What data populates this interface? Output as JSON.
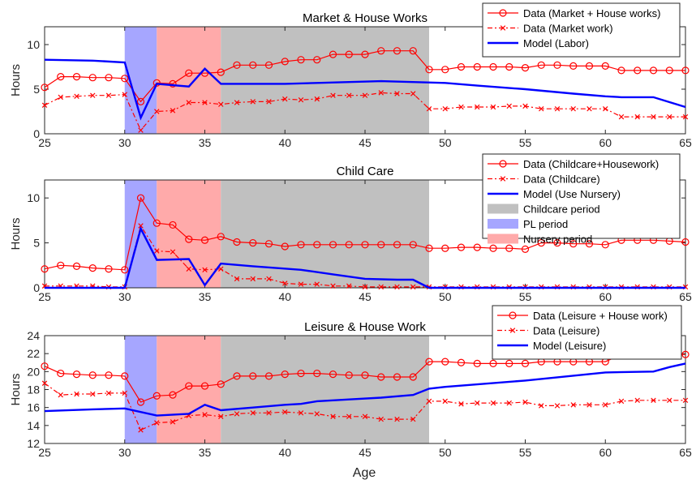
{
  "figure": {
    "xlabel": "Age"
  },
  "colors": {
    "data": "#ff0000",
    "model": "#0000ff",
    "childcare_period": "#c0c0c0",
    "pl_period": "#a6a6ff",
    "nursery_period": "#ffaaaa"
  },
  "chart_data": [
    {
      "type": "line",
      "title": "Market & House Works",
      "xlabel": "",
      "ylabel": "Hours",
      "xlim": [
        25,
        65
      ],
      "ylim": [
        0,
        12
      ],
      "xticks": [
        "25",
        "30",
        "35",
        "40",
        "45",
        "50",
        "55",
        "60",
        "65"
      ],
      "yticks": [
        "0",
        "5",
        "10"
      ],
      "legend_position": "top-right",
      "shaded_regions": [
        {
          "name": "PL period",
          "x": [
            30,
            32
          ]
        },
        {
          "name": "Nursery period",
          "x": [
            32,
            36
          ]
        },
        {
          "name": "Childcare period",
          "x": [
            36,
            49
          ]
        }
      ],
      "series": [
        {
          "name": "Data (Market + House works)",
          "style": "solid-circle",
          "x": [
            25,
            26,
            27,
            28,
            29,
            30,
            31,
            32,
            33,
            34,
            35,
            36,
            37,
            38,
            39,
            40,
            41,
            42,
            43,
            44,
            45,
            46,
            47,
            48,
            49,
            50,
            51,
            52,
            53,
            54,
            55,
            56,
            57,
            58,
            59,
            60,
            61,
            62,
            63,
            64,
            65
          ],
          "y": [
            5.2,
            6.4,
            6.4,
            6.3,
            6.3,
            6.2,
            3.6,
            5.7,
            5.6,
            6.8,
            6.8,
            6.9,
            7.7,
            7.7,
            7.7,
            8.1,
            8.3,
            8.3,
            8.9,
            8.9,
            8.9,
            9.3,
            9.3,
            9.3,
            7.2,
            7.2,
            7.5,
            7.5,
            7.5,
            7.5,
            7.4,
            7.7,
            7.7,
            7.6,
            7.6,
            7.6,
            7.1,
            7.1,
            7.1,
            7.1,
            7.1
          ]
        },
        {
          "name": "Data (Market work)",
          "style": "dashdot-x",
          "x": [
            25,
            26,
            27,
            28,
            29,
            30,
            31,
            32,
            33,
            34,
            35,
            36,
            37,
            38,
            39,
            40,
            41,
            42,
            43,
            44,
            45,
            46,
            47,
            48,
            49,
            50,
            51,
            52,
            53,
            54,
            55,
            56,
            57,
            58,
            59,
            60,
            61,
            62,
            63,
            64,
            65
          ],
          "y": [
            3.2,
            4.1,
            4.2,
            4.3,
            4.3,
            4.4,
            0.4,
            2.5,
            2.6,
            3.5,
            3.5,
            3.3,
            3.5,
            3.6,
            3.6,
            3.9,
            3.8,
            3.9,
            4.3,
            4.3,
            4.3,
            4.6,
            4.5,
            4.5,
            2.8,
            2.8,
            3.0,
            3.0,
            3.0,
            3.1,
            3.1,
            2.8,
            2.8,
            2.8,
            2.8,
            2.8,
            1.9,
            1.9,
            1.9,
            1.9,
            1.9
          ]
        },
        {
          "name": "Model (Labor)",
          "style": "solid",
          "x": [
            25,
            28,
            30,
            31,
            32,
            34,
            35,
            36,
            38,
            40,
            42,
            44,
            46,
            48,
            50,
            52,
            55,
            58,
            60,
            61,
            63,
            65
          ],
          "y": [
            8.3,
            8.2,
            8.0,
            1.8,
            5.6,
            5.3,
            7.3,
            5.6,
            5.6,
            5.6,
            5.7,
            5.8,
            5.9,
            5.8,
            5.7,
            5.4,
            5.0,
            4.5,
            4.2,
            4.1,
            4.1,
            3.0
          ]
        }
      ]
    },
    {
      "type": "line",
      "title": "Child Care",
      "xlabel": "",
      "ylabel": "Hours",
      "xlim": [
        25,
        65
      ],
      "ylim": [
        0,
        12
      ],
      "xticks": [
        "25",
        "30",
        "35",
        "40",
        "45",
        "50",
        "55",
        "60",
        "65"
      ],
      "yticks": [
        "0",
        "5",
        "10"
      ],
      "legend_position": "top-right",
      "shaded_regions": [
        {
          "name": "PL period",
          "x": [
            30,
            32
          ]
        },
        {
          "name": "Nursery period",
          "x": [
            32,
            36
          ]
        },
        {
          "name": "Childcare period",
          "x": [
            36,
            49
          ]
        }
      ],
      "series": [
        {
          "name": "Data (Childcare+Housework)",
          "style": "solid-circle",
          "x": [
            25,
            26,
            27,
            28,
            29,
            30,
            31,
            32,
            33,
            34,
            35,
            36,
            37,
            38,
            39,
            40,
            41,
            42,
            43,
            44,
            45,
            46,
            47,
            48,
            49,
            50,
            51,
            52,
            53,
            54,
            55,
            56,
            57,
            58,
            59,
            60,
            61,
            62,
            63,
            64,
            65
          ],
          "y": [
            2.1,
            2.5,
            2.4,
            2.2,
            2.1,
            2.0,
            10.0,
            7.2,
            7.0,
            5.4,
            5.3,
            5.7,
            5.1,
            5.0,
            4.9,
            4.6,
            4.8,
            4.8,
            4.8,
            4.8,
            4.8,
            4.8,
            4.8,
            4.8,
            4.4,
            4.4,
            4.5,
            4.5,
            4.4,
            4.4,
            4.3,
            5.0,
            5.0,
            4.9,
            4.9,
            4.8,
            5.3,
            5.3,
            5.3,
            5.2,
            5.1
          ]
        },
        {
          "name": "Data (Childcare)",
          "style": "dashdot-x",
          "x": [
            25,
            26,
            27,
            28,
            29,
            30,
            31,
            32,
            33,
            34,
            35,
            36,
            37,
            38,
            39,
            40,
            41,
            42,
            43,
            44,
            45,
            46,
            47,
            48,
            49,
            50,
            51,
            52,
            53,
            54,
            55,
            56,
            57,
            58,
            59,
            60,
            61,
            62,
            63,
            64,
            65
          ],
          "y": [
            0.2,
            0.2,
            0.2,
            0.2,
            0.1,
            0.1,
            6.9,
            4.1,
            4.0,
            2.1,
            2.0,
            2.1,
            1.0,
            1.0,
            1.0,
            0.5,
            0.4,
            0.4,
            0.2,
            0.2,
            0.1,
            0.1,
            0.1,
            0.1,
            0.1,
            0.1,
            0.1,
            0.1,
            0.1,
            0.1,
            0.1,
            0.1,
            0.1,
            0.1,
            0.1,
            0.1,
            0.1,
            0.1,
            0.1,
            0.1,
            0.1
          ]
        },
        {
          "name": "Model (Use Nursery)",
          "style": "solid",
          "x": [
            25,
            30,
            31,
            32,
            34,
            35,
            36,
            38,
            41,
            43,
            45,
            47,
            48,
            49,
            50,
            55,
            60,
            65
          ],
          "y": [
            0,
            0,
            6.6,
            3.1,
            3.2,
            0.3,
            2.7,
            2.4,
            2.0,
            1.5,
            1.0,
            0.9,
            0.9,
            0,
            0,
            0,
            0,
            0
          ]
        }
      ]
    },
    {
      "type": "line",
      "title": "Leisure & House Work",
      "xlabel": "Age",
      "ylabel": "Hours",
      "xlim": [
        25,
        65
      ],
      "ylim": [
        12,
        24
      ],
      "xticks": [
        "25",
        "30",
        "35",
        "40",
        "45",
        "50",
        "55",
        "60",
        "65"
      ],
      "yticks": [
        "12",
        "14",
        "16",
        "18",
        "20",
        "22",
        "24"
      ],
      "legend_position": "top-right",
      "shaded_regions": [
        {
          "name": "PL period",
          "x": [
            30,
            32
          ]
        },
        {
          "name": "Nursery period",
          "x": [
            32,
            36
          ]
        },
        {
          "name": "Childcare period",
          "x": [
            36,
            49
          ]
        }
      ],
      "series": [
        {
          "name": "Data (Leisure + House work)",
          "style": "solid-circle",
          "x": [
            25,
            26,
            27,
            28,
            29,
            30,
            31,
            32,
            33,
            34,
            35,
            36,
            37,
            38,
            39,
            40,
            41,
            42,
            43,
            44,
            45,
            46,
            47,
            48,
            49,
            50,
            51,
            52,
            53,
            54,
            55,
            56,
            57,
            58,
            59,
            60,
            61,
            62,
            63,
            64,
            65
          ],
          "y": [
            20.6,
            19.8,
            19.7,
            19.6,
            19.6,
            19.5,
            16.6,
            17.3,
            17.4,
            18.4,
            18.4,
            18.6,
            19.5,
            19.5,
            19.5,
            19.7,
            19.8,
            19.8,
            19.7,
            19.6,
            19.6,
            19.4,
            19.4,
            19.4,
            21.1,
            21.1,
            21.0,
            20.9,
            20.9,
            20.9,
            20.9,
            21.1,
            21.1,
            21.1,
            21.1,
            21.1,
            21.9,
            21.9,
            21.9,
            21.9,
            21.9
          ]
        },
        {
          "name": "Data (Leisure)",
          "style": "dashdot-x",
          "x": [
            25,
            26,
            27,
            28,
            29,
            30,
            31,
            32,
            33,
            34,
            35,
            36,
            37,
            38,
            39,
            40,
            41,
            42,
            43,
            44,
            45,
            46,
            47,
            48,
            49,
            50,
            51,
            52,
            53,
            54,
            55,
            56,
            57,
            58,
            59,
            60,
            61,
            62,
            63,
            64,
            65
          ],
          "y": [
            18.7,
            17.4,
            17.5,
            17.5,
            17.6,
            17.6,
            13.5,
            14.3,
            14.4,
            15.1,
            15.2,
            15.0,
            15.3,
            15.4,
            15.4,
            15.5,
            15.4,
            15.3,
            15.0,
            15.0,
            15.0,
            14.7,
            14.7,
            14.7,
            16.7,
            16.7,
            16.4,
            16.5,
            16.5,
            16.5,
            16.6,
            16.2,
            16.2,
            16.3,
            16.3,
            16.3,
            16.7,
            16.8,
            16.8,
            16.8,
            16.8
          ]
        },
        {
          "name": "Model (Leisure)",
          "style": "solid",
          "x": [
            25,
            28,
            30,
            32,
            34,
            35,
            36,
            38,
            40,
            41,
            42,
            44,
            46,
            48,
            49,
            50,
            55,
            60,
            63,
            64,
            65
          ],
          "y": [
            15.6,
            15.8,
            15.9,
            15.1,
            15.3,
            16.3,
            15.7,
            16.0,
            16.3,
            16.4,
            16.7,
            16.9,
            17.1,
            17.4,
            18.1,
            18.3,
            19.0,
            19.9,
            20.0,
            20.5,
            20.9
          ]
        }
      ]
    }
  ]
}
